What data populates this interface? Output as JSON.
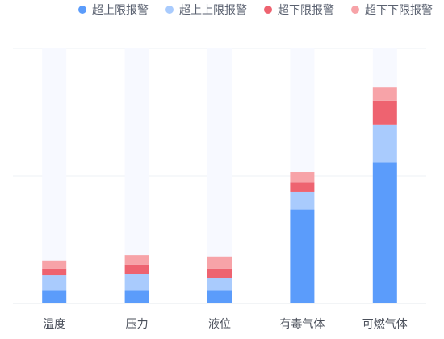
{
  "chart_data": {
    "type": "bar",
    "stacked": true,
    "categories": [
      "温度",
      "压力",
      "液位",
      "有毒气体",
      "可燃气体"
    ],
    "series": [
      {
        "name": "超上限报警",
        "color": "#5b9cfb",
        "values": [
          10,
          10,
          10,
          70,
          105
        ]
      },
      {
        "name": "超上上限报警",
        "color": "#a9cbfd",
        "values": [
          11,
          12,
          9,
          13,
          28
        ]
      },
      {
        "name": "超下限报警",
        "color": "#ee6370",
        "values": [
          5,
          7,
          7,
          7,
          18
        ]
      },
      {
        "name": "超下下限报警",
        "color": "#f7a3a8",
        "values": [
          6,
          7,
          9,
          8,
          10
        ]
      }
    ],
    "ylim": [
      0,
      190
    ],
    "grid": true,
    "legend_position": "top-right",
    "bar_background_color": "#f7f9ff"
  }
}
